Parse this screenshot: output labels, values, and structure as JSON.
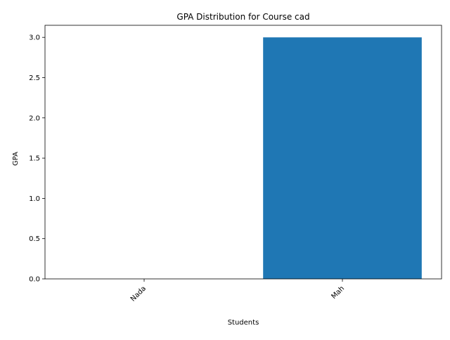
{
  "chart_data": {
    "type": "bar",
    "title": "GPA Distribution for Course cad",
    "xlabel": "Students",
    "ylabel": "GPA",
    "categories": [
      "Nada",
      "Mah"
    ],
    "values": [
      0.0,
      3.0
    ],
    "ylim": [
      0,
      3.15
    ],
    "yticks": [
      "0.0",
      "0.5",
      "1.0",
      "1.5",
      "2.0",
      "2.5",
      "3.0"
    ],
    "grid": false,
    "colors": {
      "bar": "#1f77b4",
      "axis": "#000000",
      "background": "#ffffff"
    }
  }
}
